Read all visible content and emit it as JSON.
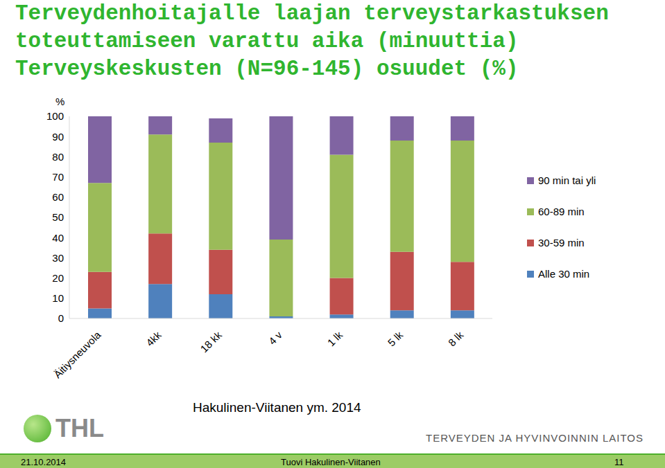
{
  "chart_data": {
    "type": "bar",
    "title": "Terveydenhoitajalle laajan terveystarkastuksen\ntoteuttamiseen varattu aika (minuuttia)\nTerveyskeskusten (N=96-145) osuudet (%)",
    "y_label": "%",
    "categories": [
      "Äitiysneuvola",
      "4kk",
      "18 kk",
      "4 v",
      "1 lk",
      "5 lk",
      "8 lk"
    ],
    "series": [
      {
        "name": "Alle 30 min",
        "color": "#4f81bd",
        "values": [
          5,
          17,
          12,
          1,
          2,
          4,
          4
        ]
      },
      {
        "name": "30-59 min",
        "color": "#c0504d",
        "values": [
          18,
          25,
          22,
          0,
          18,
          29,
          24
        ]
      },
      {
        "name": "60-89 min",
        "color": "#9bbb59",
        "values": [
          44,
          49,
          53,
          38,
          61,
          55,
          60
        ]
      },
      {
        "name": "90 min tai yli",
        "color": "#8064a2",
        "values": [
          33,
          9,
          12,
          61,
          19,
          12,
          12
        ]
      }
    ],
    "ylim": [
      0,
      100
    ],
    "yticks": [
      0,
      10,
      20,
      30,
      40,
      50,
      60,
      70,
      80,
      90,
      100
    ],
    "stacked": true,
    "grid": false,
    "legend": "right"
  },
  "page": {
    "source": "Hakulinen-Viitanen ym. 2014",
    "logo": "THL",
    "organization": "TERVEYDEN JA HYVINVOINNIN LAITOS",
    "footer": {
      "date": "21.10.2014",
      "author": "Tuovi Hakulinen-Viitanen",
      "page": 11
    }
  }
}
